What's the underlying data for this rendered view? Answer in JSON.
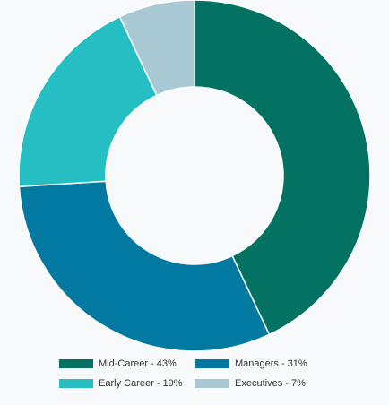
{
  "chart_data": {
    "type": "donut",
    "title": "",
    "slices": [
      {
        "label": "Mid-Career - 43%",
        "value": 43,
        "color": "#037262"
      },
      {
        "label": "Managers - 31%",
        "value": 31,
        "color": "#0279a1"
      },
      {
        "label": "Early Career - 19%",
        "value": 19,
        "color": "#24bec3"
      },
      {
        "label": "Executives - 7%",
        "value": 7,
        "color": "#a8c9d4"
      }
    ],
    "legend_position": "bottom",
    "background": "#f7f9fb"
  }
}
